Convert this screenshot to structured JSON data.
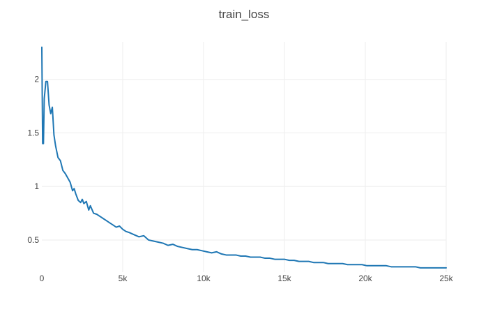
{
  "chart_data": {
    "type": "line",
    "title": "train_loss",
    "xlabel": "",
    "ylabel": "",
    "xlim": [
      0,
      25000
    ],
    "ylim": [
      0.2,
      2.35
    ],
    "grid": true,
    "legend": "none",
    "x_ticks": [
      {
        "value": 0,
        "label": "0"
      },
      {
        "value": 5000,
        "label": "5k"
      },
      {
        "value": 10000,
        "label": "10k"
      },
      {
        "value": 15000,
        "label": "15k"
      },
      {
        "value": 20000,
        "label": "20k"
      },
      {
        "value": 25000,
        "label": "25k"
      }
    ],
    "y_ticks": [
      {
        "value": 0.5,
        "label": "0.5"
      },
      {
        "value": 1,
        "label": "1"
      },
      {
        "value": 1.5,
        "label": "1.5"
      },
      {
        "value": 2,
        "label": "2"
      }
    ],
    "colors": {
      "series": "#1f77b4",
      "grid": "#eeeeee",
      "text": "#444444"
    },
    "series": [
      {
        "x": [
          0,
          50,
          100,
          150,
          250,
          350,
          450,
          550,
          650,
          750,
          850,
          1000,
          1150,
          1300,
          1450,
          1600,
          1750,
          1900,
          2000,
          2100,
          2250,
          2400,
          2500,
          2600,
          2750,
          2900,
          3000,
          3200,
          3400,
          3600,
          3800,
          4000,
          4200,
          4400,
          4600,
          4800,
          5000,
          5200,
          5400,
          5700,
          6000,
          6300,
          6600,
          6900,
          7200,
          7500,
          7800,
          8100,
          8400,
          8700,
          9000,
          9300,
          9600,
          9900,
          10200,
          10500,
          10800,
          11100,
          11400,
          11700,
          12000,
          12300,
          12600,
          12900,
          13200,
          13500,
          13800,
          14100,
          14400,
          14700,
          15000,
          15300,
          15600,
          15900,
          16200,
          16500,
          16800,
          17100,
          17400,
          17700,
          18000,
          18300,
          18600,
          18900,
          19200,
          19500,
          19800,
          20100,
          20400,
          20700,
          21000,
          21300,
          21600,
          21900,
          22200,
          22500,
          22800,
          23100,
          23400,
          23700,
          24000,
          24300,
          24600,
          25000
        ],
        "y": [
          2.3,
          1.4,
          1.4,
          1.82,
          1.98,
          1.98,
          1.76,
          1.68,
          1.74,
          1.48,
          1.38,
          1.27,
          1.24,
          1.15,
          1.12,
          1.08,
          1.04,
          0.96,
          0.98,
          0.93,
          0.87,
          0.85,
          0.88,
          0.84,
          0.86,
          0.78,
          0.82,
          0.75,
          0.74,
          0.72,
          0.7,
          0.68,
          0.66,
          0.64,
          0.62,
          0.63,
          0.6,
          0.58,
          0.57,
          0.55,
          0.53,
          0.54,
          0.5,
          0.49,
          0.48,
          0.47,
          0.45,
          0.46,
          0.44,
          0.43,
          0.42,
          0.41,
          0.41,
          0.4,
          0.39,
          0.38,
          0.39,
          0.37,
          0.36,
          0.36,
          0.36,
          0.35,
          0.35,
          0.34,
          0.34,
          0.34,
          0.33,
          0.33,
          0.32,
          0.32,
          0.32,
          0.31,
          0.31,
          0.3,
          0.3,
          0.3,
          0.29,
          0.29,
          0.29,
          0.28,
          0.28,
          0.28,
          0.28,
          0.27,
          0.27,
          0.27,
          0.27,
          0.26,
          0.26,
          0.26,
          0.26,
          0.26,
          0.25,
          0.25,
          0.25,
          0.25,
          0.25,
          0.25,
          0.24,
          0.24,
          0.24,
          0.24,
          0.24,
          0.24
        ]
      }
    ]
  }
}
